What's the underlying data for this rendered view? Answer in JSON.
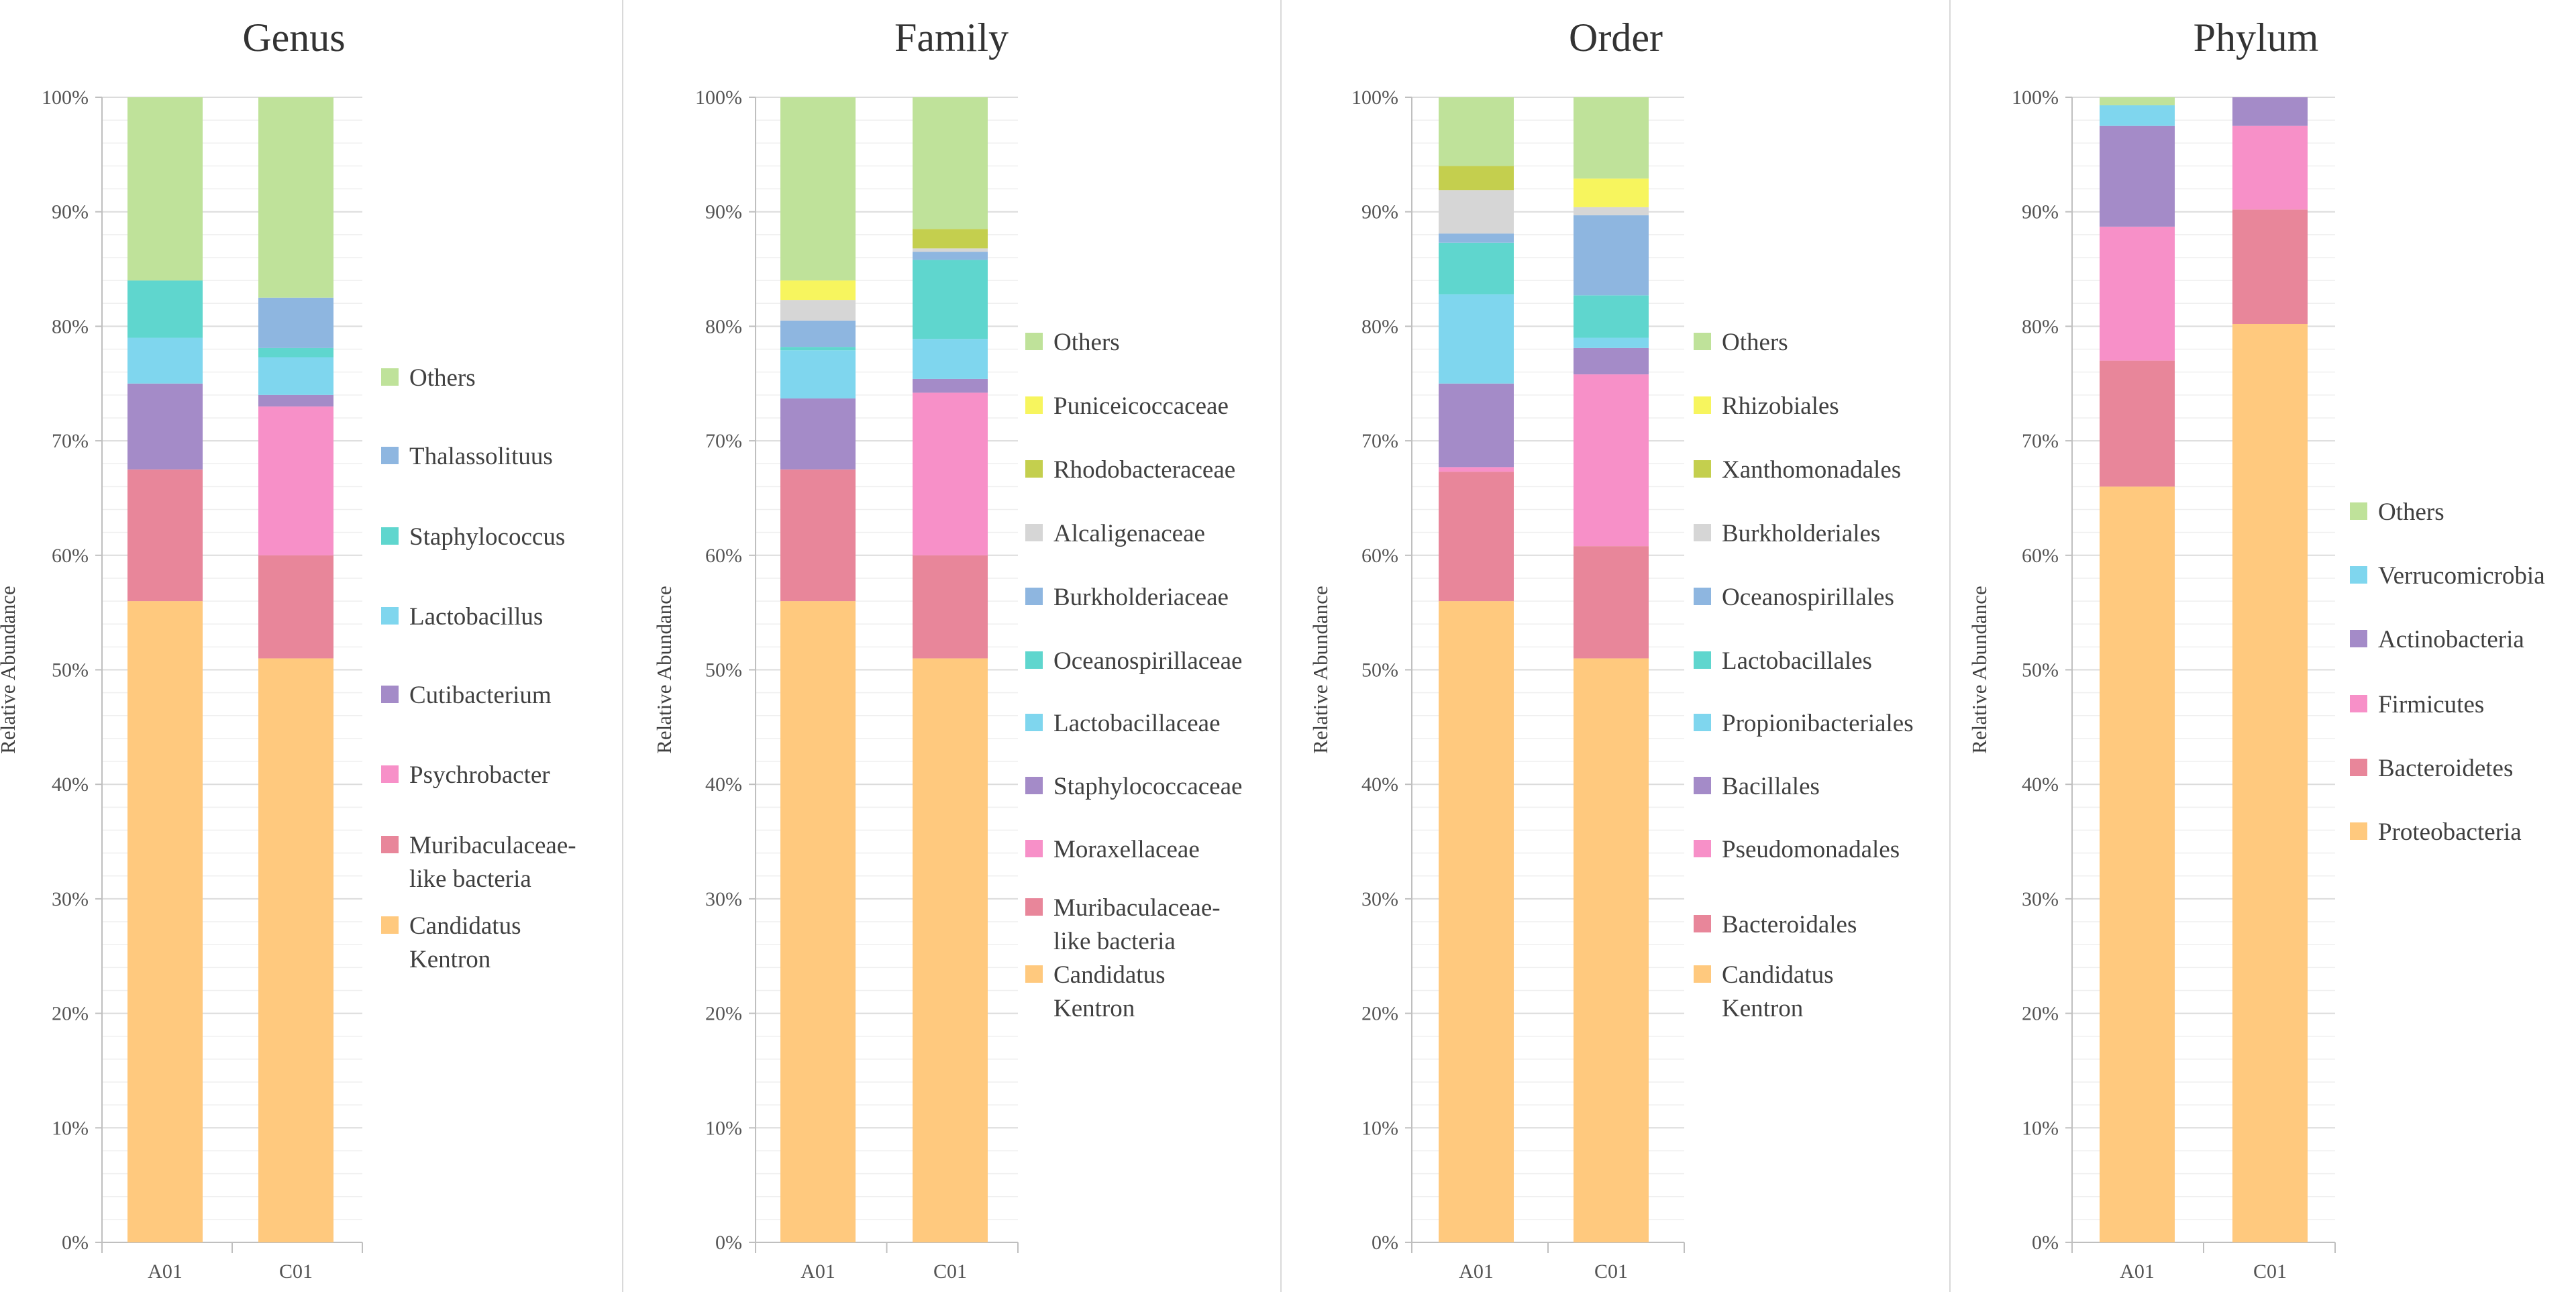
{
  "chart_data": [
    {
      "type": "bar",
      "stacked": true,
      "title": "Genus",
      "xlabel": "",
      "ylabel": "Relative Abundance",
      "ylim": [
        0,
        100
      ],
      "yticks": [
        "0%",
        "10%",
        "20%",
        "30%",
        "40%",
        "50%",
        "60%",
        "70%",
        "80%",
        "90%",
        "100%"
      ],
      "categories": [
        "A01",
        "C01"
      ],
      "series": [
        {
          "name": "Candidatus Kentron",
          "color": "#FFC97E",
          "values": [
            56.0,
            51.0
          ]
        },
        {
          "name": "Muribaculaceae-like bacteria",
          "color": "#E8869A",
          "values": [
            11.5,
            9.0
          ]
        },
        {
          "name": "Psychrobacter",
          "color": "#F790C8",
          "values": [
            0.0,
            13.0
          ]
        },
        {
          "name": "Cutibacterium",
          "color": "#A48BC8",
          "values": [
            7.5,
            1.0
          ]
        },
        {
          "name": "Lactobacillus",
          "color": "#7FD6EE",
          "values": [
            4.0,
            3.3
          ]
        },
        {
          "name": "Staphylococcus",
          "color": "#5FD6CE",
          "values": [
            5.0,
            0.8
          ]
        },
        {
          "name": "Thalassolituus",
          "color": "#8EB6E0",
          "values": [
            0.0,
            4.4
          ]
        },
        {
          "name": "Others",
          "color": "#BFE29A",
          "values": [
            16.0,
            17.5
          ]
        }
      ],
      "legend": [
        "Others",
        "Thalassolituus",
        "Staphylococcus",
        "Lactobacillus",
        "Cutibacterium",
        "Psychrobacter",
        "Muribaculaceae-like bacteria",
        "Candidatus Kentron"
      ]
    },
    {
      "type": "bar",
      "stacked": true,
      "title": "Family",
      "xlabel": "",
      "ylabel": "Relative Abundance",
      "ylim": [
        0,
        100
      ],
      "yticks": [
        "0%",
        "10%",
        "20%",
        "30%",
        "40%",
        "50%",
        "60%",
        "70%",
        "80%",
        "90%",
        "100%"
      ],
      "categories": [
        "A01",
        "C01"
      ],
      "series": [
        {
          "name": "Candidatus Kentron",
          "color": "#FFC97E",
          "values": [
            56.0,
            51.0
          ]
        },
        {
          "name": "Muribaculaceae-like bacteria",
          "color": "#E8869A",
          "values": [
            11.5,
            9.0
          ]
        },
        {
          "name": "Moraxellaceae",
          "color": "#F790C8",
          "values": [
            0.0,
            14.2
          ]
        },
        {
          "name": "Staphylococcaceae",
          "color": "#A48BC8",
          "values": [
            6.2,
            1.2
          ]
        },
        {
          "name": "Lactobacillaceae",
          "color": "#7FD6EE",
          "values": [
            4.2,
            3.5
          ]
        },
        {
          "name": "Oceanospirillaceae",
          "color": "#5FD6CE",
          "values": [
            0.3,
            6.9
          ]
        },
        {
          "name": "Burkholderiaceae",
          "color": "#8EB6E0",
          "values": [
            2.3,
            0.7
          ]
        },
        {
          "name": "Alcaligenaceae",
          "color": "#D6D6D6",
          "values": [
            1.8,
            0.3
          ]
        },
        {
          "name": "Rhodobacteraceae",
          "color": "#C4CF4E",
          "values": [
            0.0,
            1.7
          ]
        },
        {
          "name": "Puniceicoccaceae",
          "color": "#F7F55E",
          "values": [
            1.7,
            0.0
          ]
        },
        {
          "name": "Others",
          "color": "#BFE29A",
          "values": [
            16.0,
            11.5
          ]
        }
      ],
      "legend": [
        "Others",
        "Puniceicoccaceae",
        "Rhodobacteraceae",
        "Alcaligenaceae",
        "Burkholderiaceae",
        "Oceanospirillaceae",
        "Lactobacillaceae",
        "Staphylococcaceae",
        "Moraxellaceae",
        "Muribaculaceae-like bacteria",
        "Candidatus Kentron"
      ]
    },
    {
      "type": "bar",
      "stacked": true,
      "title": "Order",
      "xlabel": "",
      "ylabel": "Relative Abundance",
      "ylim": [
        0,
        100
      ],
      "yticks": [
        "0%",
        "10%",
        "20%",
        "30%",
        "40%",
        "50%",
        "60%",
        "70%",
        "80%",
        "90%",
        "100%"
      ],
      "categories": [
        "A01",
        "C01"
      ],
      "series": [
        {
          "name": "Candidatus Kentron",
          "color": "#FFC97E",
          "values": [
            56.0,
            51.0
          ]
        },
        {
          "name": "Bacteroidales",
          "color": "#E8869A",
          "values": [
            11.3,
            9.8
          ]
        },
        {
          "name": "Pseudomonadales",
          "color": "#F790C8",
          "values": [
            0.4,
            15.0
          ]
        },
        {
          "name": "Bacillales",
          "color": "#A48BC8",
          "values": [
            7.3,
            2.3
          ]
        },
        {
          "name": "Propionibacteriales",
          "color": "#7FD6EE",
          "values": [
            7.8,
            0.9
          ]
        },
        {
          "name": "Lactobacillales",
          "color": "#5FD6CE",
          "values": [
            4.5,
            3.7
          ]
        },
        {
          "name": "Oceanospirillales",
          "color": "#8EB6E0",
          "values": [
            0.8,
            7.0
          ]
        },
        {
          "name": "Burkholderiales",
          "color": "#D6D6D6",
          "values": [
            3.8,
            0.7
          ]
        },
        {
          "name": "Xanthomonadales",
          "color": "#C4CF4E",
          "values": [
            2.1,
            0.0
          ]
        },
        {
          "name": "Rhizobiales",
          "color": "#F7F55E",
          "values": [
            0.0,
            2.5
          ]
        },
        {
          "name": "Others",
          "color": "#BFE29A",
          "values": [
            6.0,
            7.1
          ]
        }
      ],
      "legend": [
        "Others",
        "Rhizobiales",
        "Xanthomonadales",
        "Burkholderiales",
        "Oceanospirillales",
        "Lactobacillales",
        "Propionibacteriales",
        "Bacillales",
        "Pseudomonadales",
        "Bacteroidales",
        "Candidatus Kentron"
      ]
    },
    {
      "type": "bar",
      "stacked": true,
      "title": "Phylum",
      "xlabel": "",
      "ylabel": "Relative Abundance",
      "ylim": [
        0,
        100
      ],
      "yticks": [
        "0%",
        "10%",
        "20%",
        "30%",
        "40%",
        "50%",
        "60%",
        "70%",
        "80%",
        "90%",
        "100%"
      ],
      "categories": [
        "A01",
        "C01"
      ],
      "series": [
        {
          "name": "Proteobacteria",
          "color": "#FFC97E",
          "values": [
            66.0,
            80.2
          ]
        },
        {
          "name": "Bacteroidetes",
          "color": "#E8869A",
          "values": [
            11.0,
            10.0
          ]
        },
        {
          "name": "Firmicutes",
          "color": "#F790C8",
          "values": [
            11.7,
            7.3
          ]
        },
        {
          "name": "Actinobacteria",
          "color": "#A48BC8",
          "values": [
            8.8,
            2.5
          ]
        },
        {
          "name": "Verrucomicrobia",
          "color": "#7FD6EE",
          "values": [
            1.8,
            0.0
          ]
        },
        {
          "name": "Others",
          "color": "#BFE29A",
          "values": [
            0.7,
            0.0
          ]
        }
      ],
      "legend": [
        "Others",
        "Verrucomicrobia",
        "Actinobacteria",
        "Firmicutes",
        "Bacteroidetes",
        "Proteobacteria"
      ]
    }
  ]
}
